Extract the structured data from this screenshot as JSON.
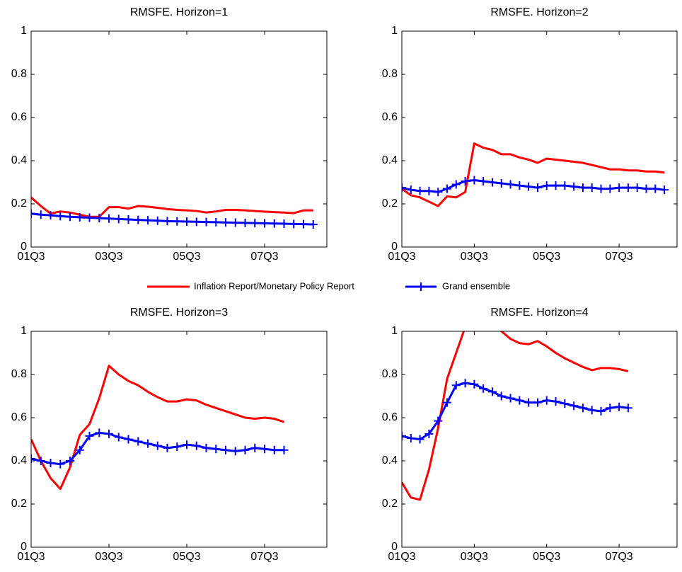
{
  "chart_data": [
    {
      "type": "line",
      "title": "RMSFE. Horizon=1",
      "categories": [
        "01Q3",
        null,
        null,
        null,
        null,
        null,
        null,
        null,
        "03Q3",
        null,
        null,
        null,
        null,
        null,
        null,
        null,
        "05Q3",
        null,
        null,
        null,
        null,
        null,
        null,
        null,
        "07Q3",
        null,
        null,
        null,
        null,
        null
      ],
      "series": [
        {
          "name": "Inflation Report/Monetary Policy Report",
          "color": "#ff0000",
          "values": [
            0.23,
            0.19,
            0.155,
            0.165,
            0.16,
            0.15,
            0.14,
            0.14,
            0.185,
            0.185,
            0.178,
            0.19,
            0.187,
            0.182,
            0.176,
            0.172,
            0.17,
            0.167,
            0.16,
            0.165,
            0.172,
            0.172,
            0.17,
            0.167,
            0.164,
            0.162,
            0.16,
            0.157,
            0.17,
            0.17
          ]
        },
        {
          "name": "Grand ensemble",
          "color": "#0000ff",
          "marker": "+",
          "values": [
            0.155,
            0.15,
            0.147,
            0.143,
            0.14,
            0.138,
            0.136,
            0.134,
            0.132,
            0.13,
            0.128,
            0.126,
            0.124,
            0.122,
            0.12,
            0.119,
            0.118,
            0.117,
            0.116,
            0.115,
            0.114,
            0.113,
            0.112,
            0.111,
            0.11,
            0.109,
            0.108,
            0.107,
            0.106,
            0.105
          ]
        }
      ],
      "ylim": [
        0,
        1
      ],
      "yticks": [
        0,
        0.2,
        0.4,
        0.6,
        0.8,
        1
      ]
    },
    {
      "type": "line",
      "title": "RMSFE. Horizon=2",
      "categories": [
        "01Q3",
        null,
        null,
        null,
        null,
        null,
        null,
        null,
        "03Q3",
        null,
        null,
        null,
        null,
        null,
        null,
        null,
        "05Q3",
        null,
        null,
        null,
        null,
        null,
        null,
        null,
        "07Q3",
        null,
        null,
        null,
        null,
        null
      ],
      "series": [
        {
          "color": "#ff0000",
          "values": [
            0.27,
            0.24,
            0.23,
            0.21,
            0.19,
            0.235,
            0.23,
            0.255,
            0.48,
            0.46,
            0.45,
            0.43,
            0.43,
            0.415,
            0.405,
            0.39,
            0.41,
            0.405,
            0.4,
            0.395,
            0.39,
            0.38,
            0.37,
            0.36,
            0.36,
            0.355,
            0.355,
            0.35,
            0.35,
            0.345
          ]
        },
        {
          "color": "#0000ff",
          "marker": "+",
          "values": [
            0.275,
            0.265,
            0.26,
            0.26,
            0.255,
            0.27,
            0.29,
            0.305,
            0.31,
            0.305,
            0.3,
            0.295,
            0.29,
            0.285,
            0.28,
            0.275,
            0.285,
            0.285,
            0.285,
            0.28,
            0.275,
            0.275,
            0.27,
            0.27,
            0.275,
            0.275,
            0.275,
            0.27,
            0.27,
            0.265
          ]
        }
      ],
      "ylim": [
        0,
        1
      ],
      "yticks": [
        0,
        0.2,
        0.4,
        0.6,
        0.8,
        1
      ]
    },
    {
      "type": "line",
      "title": "RMSFE. Horizon=3",
      "categories": [
        "01Q3",
        null,
        null,
        null,
        null,
        null,
        null,
        null,
        "03Q3",
        null,
        null,
        null,
        null,
        null,
        null,
        null,
        "05Q3",
        null,
        null,
        null,
        null,
        null,
        null,
        null,
        "07Q3",
        null,
        null
      ],
      "series": [
        {
          "color": "#ff0000",
          "values": [
            0.5,
            0.4,
            0.32,
            0.27,
            0.37,
            0.52,
            0.57,
            0.69,
            0.84,
            0.8,
            0.77,
            0.75,
            0.72,
            0.695,
            0.675,
            0.675,
            0.685,
            0.68,
            0.66,
            0.645,
            0.63,
            0.615,
            0.6,
            0.595,
            0.6,
            0.595,
            0.58
          ]
        },
        {
          "color": "#0000ff",
          "marker": "+",
          "values": [
            0.41,
            0.4,
            0.39,
            0.385,
            0.4,
            0.45,
            0.515,
            0.53,
            0.525,
            0.51,
            0.5,
            0.49,
            0.48,
            0.47,
            0.46,
            0.465,
            0.475,
            0.47,
            0.46,
            0.455,
            0.45,
            0.445,
            0.45,
            0.46,
            0.455,
            0.45,
            0.45
          ]
        }
      ],
      "ylim": [
        0,
        1
      ],
      "yticks": [
        0,
        0.2,
        0.4,
        0.6,
        0.8,
        1
      ]
    },
    {
      "type": "line",
      "title": "RMSFE. Horizon=4",
      "categories": [
        "01Q3",
        null,
        null,
        null,
        null,
        null,
        null,
        null,
        "03Q3",
        null,
        null,
        null,
        null,
        null,
        null,
        null,
        "05Q3",
        null,
        null,
        null,
        null,
        null,
        null,
        null,
        "07Q3",
        null
      ],
      "series": [
        {
          "color": "#ff0000",
          "values": [
            0.3,
            0.23,
            0.22,
            0.36,
            0.55,
            0.78,
            0.9,
            1.02,
            1.08,
            1.08,
            1.05,
            1.0,
            0.965,
            0.945,
            0.94,
            0.955,
            0.93,
            0.9,
            0.875,
            0.855,
            0.835,
            0.82,
            0.83,
            0.83,
            0.825,
            0.815
          ]
        },
        {
          "color": "#0000ff",
          "marker": "+",
          "values": [
            0.515,
            0.505,
            0.5,
            0.525,
            0.585,
            0.67,
            0.75,
            0.76,
            0.755,
            0.735,
            0.72,
            0.7,
            0.69,
            0.68,
            0.67,
            0.67,
            0.68,
            0.675,
            0.665,
            0.655,
            0.645,
            0.635,
            0.63,
            0.645,
            0.65,
            0.645
          ]
        }
      ],
      "ylim": [
        0,
        1
      ],
      "yticks": [
        0,
        0.2,
        0.4,
        0.6,
        0.8,
        1
      ]
    }
  ]
}
